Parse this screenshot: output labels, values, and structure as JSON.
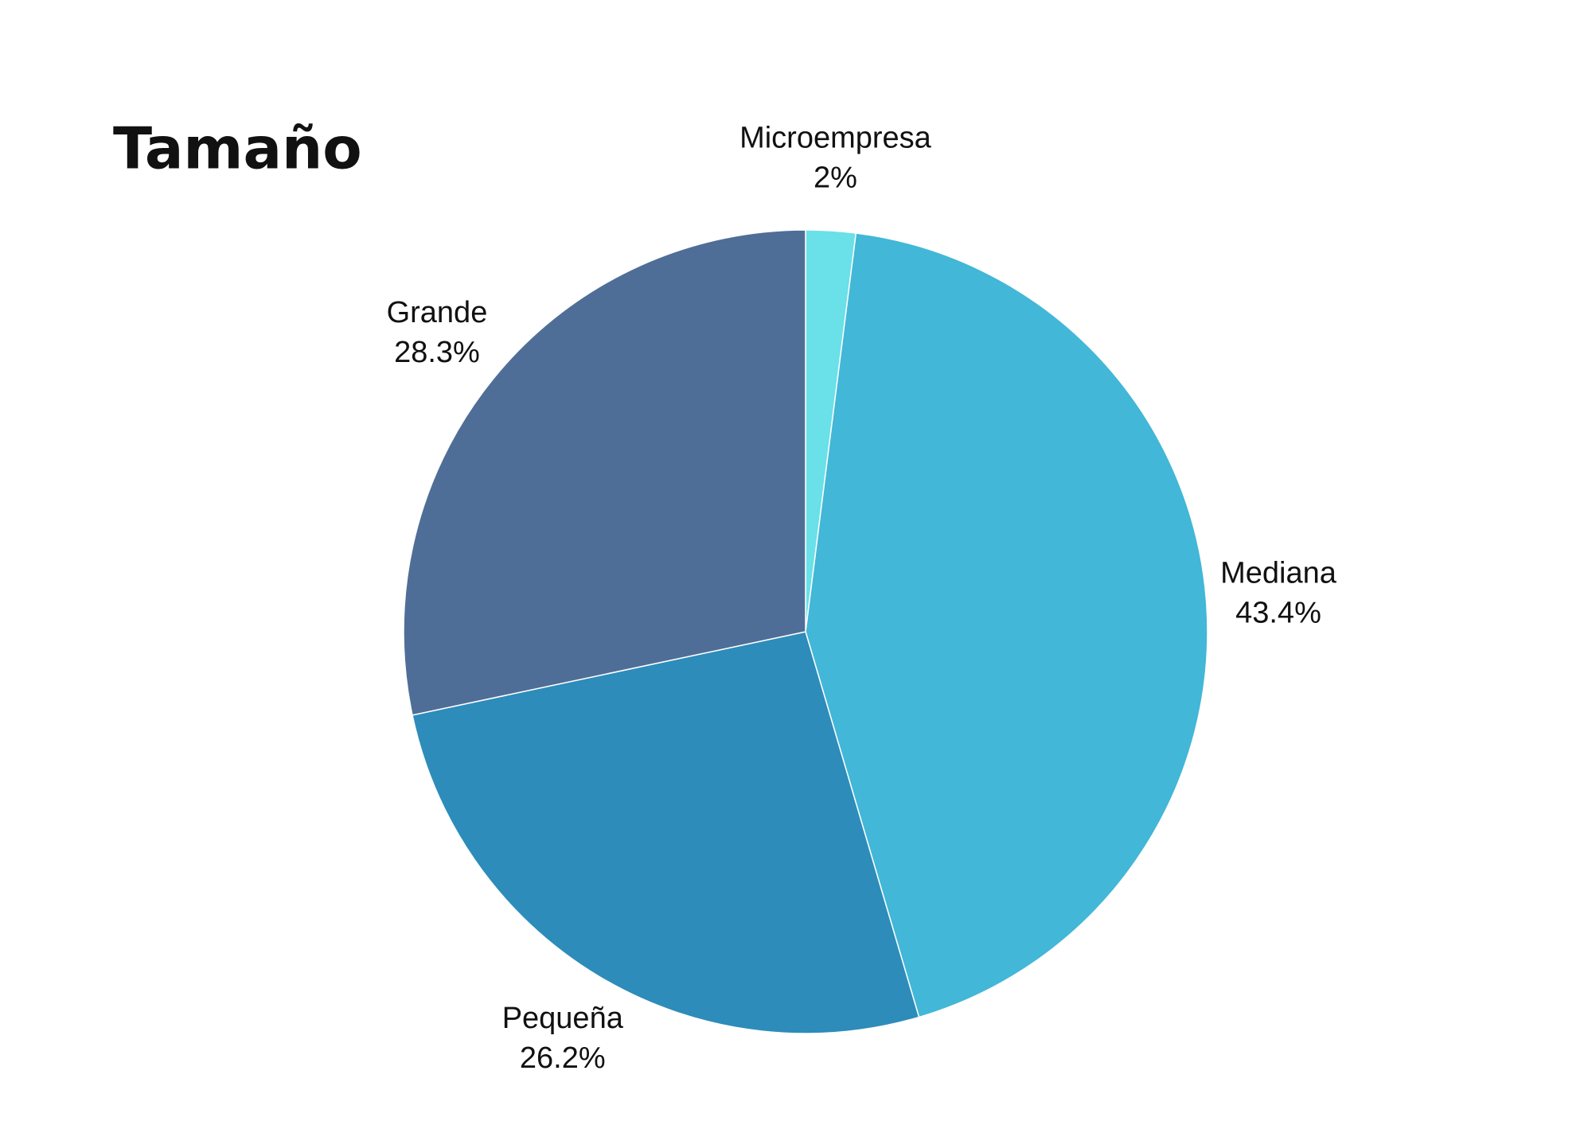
{
  "chart_data": {
    "type": "pie",
    "title": "Tamaño",
    "categories": [
      "Microempresa",
      "Mediana",
      "Pequeña",
      "Grande"
    ],
    "values": [
      2,
      43.4,
      26.2,
      28.3
    ],
    "value_labels": [
      "2%",
      "43.4%",
      "26.2%",
      "28.3%"
    ],
    "colors": [
      "#6ae0e8",
      "#42b7d7",
      "#2d8cba",
      "#4f6e97"
    ]
  }
}
